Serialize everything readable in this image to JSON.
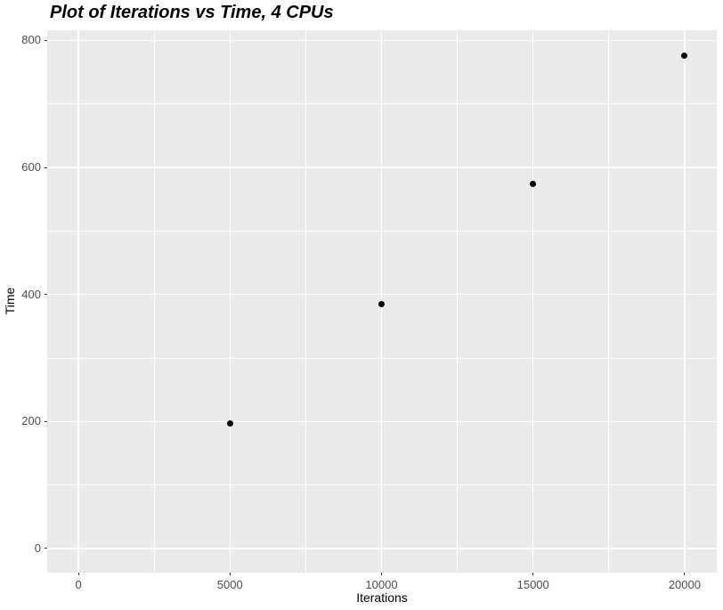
{
  "chart_data": {
    "type": "scatter",
    "title": "Plot of Iterations vs Time, 4 CPUs",
    "xlabel": "Iterations",
    "ylabel": "Time",
    "x": [
      5000,
      10000,
      15000,
      20000
    ],
    "y": [
      197,
      385,
      574,
      776
    ],
    "x_ticks": [
      0,
      5000,
      10000,
      15000,
      20000
    ],
    "y_ticks": [
      0,
      200,
      400,
      600,
      800
    ],
    "xlim": [
      -1030,
      21060
    ],
    "ylim": [
      -38,
      816
    ],
    "grid": "major and minor gridlines on",
    "legend": "none",
    "panel_background_color": "#EBEBEB",
    "gridline_color": "#FFFFFF",
    "point_color": "#000000",
    "tick_label_color": "#4D4D4D"
  }
}
